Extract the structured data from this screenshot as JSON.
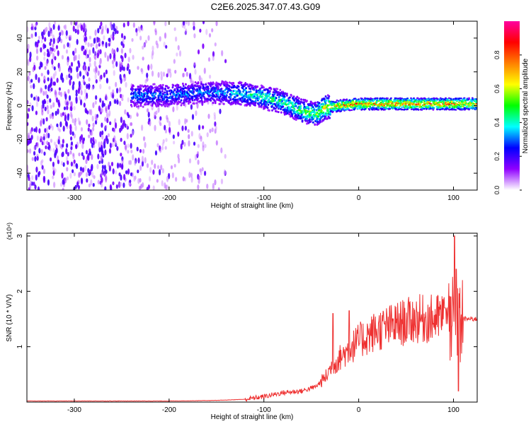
{
  "figure_title": "C2E6.2025.347.07.43.G09",
  "chart_data": [
    {
      "type": "heatmap",
      "title": "C2E6.2025.347.07.43.G09",
      "xlabel": "Height of straight line (km)",
      "ylabel": "Frequency (Hz)",
      "xlim": [
        -350,
        125
      ],
      "ylim": [
        -50,
        50
      ],
      "x_ticks": [
        -300,
        -200,
        -100,
        0,
        100
      ],
      "y_ticks": [
        -40,
        -20,
        0,
        20,
        40
      ],
      "colorbar": {
        "label": "Normalized spectral amplitude",
        "range": [
          0.0,
          1.0
        ],
        "ticks": [
          "0.0",
          "0.2",
          "0.4",
          "0.6",
          "0.8"
        ],
        "colormap": [
          "#ffffff",
          "#9000ff",
          "#0000ff",
          "#00ffff",
          "#00ff00",
          "#ffff00",
          "#ff8000",
          "#ff0000",
          "#ff00a0"
        ]
      },
      "signal_track": {
        "x": [
          -240,
          -200,
          -160,
          -120,
          -100,
          -80,
          -60,
          -45,
          -35,
          -20,
          0,
          50,
          100,
          125
        ],
        "frequency_hz": [
          6,
          6,
          8,
          7,
          5,
          2,
          -3,
          -5,
          -1,
          0,
          1,
          1,
          1,
          1
        ],
        "peak_amplitude": [
          0.35,
          0.35,
          0.35,
          0.45,
          0.5,
          0.5,
          0.55,
          0.6,
          0.7,
          0.8,
          0.85,
          0.85,
          0.85,
          0.8
        ]
      },
      "noise_region_x": [
        -350,
        -140
      ]
    },
    {
      "type": "line",
      "xlabel": "Height of straight line (km)",
      "ylabel": "SNR (10 * V/V)",
      "y_scale_label": "(x10⁴)",
      "xlim": [
        -350,
        125
      ],
      "ylim": [
        0,
        3.05
      ],
      "x_ticks": [
        -300,
        -200,
        -100,
        0,
        100
      ],
      "y_ticks": [
        1,
        2,
        3
      ],
      "series": [
        {
          "name": "SNR",
          "color": "#ee3030",
          "x": [
            -350,
            -300,
            -200,
            -150,
            -120,
            -100,
            -80,
            -60,
            -45,
            -35,
            -30,
            -20,
            -10,
            0,
            20,
            40,
            60,
            80,
            90,
            100,
            105,
            108,
            110,
            125
          ],
          "values": [
            0.02,
            0.02,
            0.02,
            0.03,
            0.05,
            0.1,
            0.17,
            0.2,
            0.28,
            0.45,
            0.6,
            0.8,
            0.95,
            1.1,
            1.3,
            1.4,
            1.5,
            1.5,
            1.55,
            1.4,
            1.3,
            1.5,
            1.5,
            1.5
          ],
          "spikes": [
            {
              "x": -27,
              "y": 1.6
            },
            {
              "x": -10,
              "y": 1.65
            },
            {
              "x": 91,
              "y": 1.7
            },
            {
              "x": 97,
              "y": 1.9
            },
            {
              "x": 101,
              "y": 3.0
            },
            {
              "x": 103,
              "y": 2.4
            },
            {
              "x": 105,
              "y": 0.2
            }
          ]
        }
      ]
    }
  ]
}
